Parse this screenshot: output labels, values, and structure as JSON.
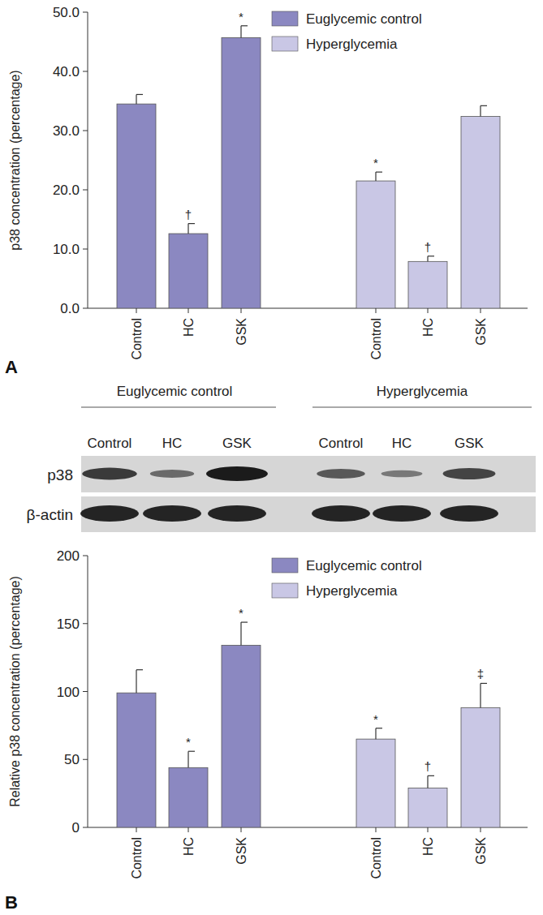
{
  "chart_data": [
    {
      "type": "bar",
      "panel_label": "A",
      "y_label": "p38 concentration (percentage)",
      "categories": [
        "Control",
        "HC",
        "GSK"
      ],
      "series": [
        {
          "name": "Euglycemic control",
          "color": "#8b88c1",
          "values": [
            34.5,
            12.6,
            45.7
          ],
          "errors": [
            1.6,
            1.7,
            2.0
          ],
          "sig_labels": [
            null,
            "†",
            "*"
          ]
        },
        {
          "name": "Hyperglycemia",
          "color": "#c9c7e5",
          "values": [
            21.5,
            7.9,
            32.4
          ],
          "errors": [
            1.5,
            0.9,
            1.8
          ],
          "sig_labels": [
            "*",
            "†",
            null
          ]
        }
      ],
      "ylim": [
        0,
        50
      ],
      "yticks": [
        {
          "value": 0,
          "label": "0.0"
        },
        {
          "value": 10,
          "label": "10.0"
        },
        {
          "value": 20,
          "label": "20.0"
        },
        {
          "value": 30,
          "label": "30.0"
        },
        {
          "value": 40,
          "label": "40.0"
        },
        {
          "value": 50,
          "label": "50.0"
        }
      ],
      "legend": "top",
      "grid": false
    },
    {
      "type": "bar",
      "panel_label": "B",
      "y_label": "Relative p38 concentration (percentage)",
      "categories": [
        "Control",
        "HC",
        "GSK"
      ],
      "series": [
        {
          "name": "Euglycemic control",
          "color": "#8b88c1",
          "values": [
            99,
            44,
            134
          ],
          "errors": [
            17,
            12,
            17
          ],
          "sig_labels": [
            null,
            "*",
            "*"
          ]
        },
        {
          "name": "Hyperglycemia",
          "color": "#c9c7e5",
          "values": [
            65,
            29,
            88
          ],
          "errors": [
            8,
            9,
            18
          ],
          "sig_labels": [
            "*",
            "†",
            "‡"
          ]
        }
      ],
      "ylim": [
        0,
        200
      ],
      "yticks": [
        0,
        50,
        100,
        150,
        200
      ],
      "legend": "top",
      "grid": false
    }
  ],
  "blot": {
    "groups": [
      "Euglycemic control",
      "Hyperglycemia"
    ],
    "lanes": [
      "Control",
      "HC",
      "GSK"
    ],
    "rows": [
      "p38",
      "β-actin"
    ]
  }
}
